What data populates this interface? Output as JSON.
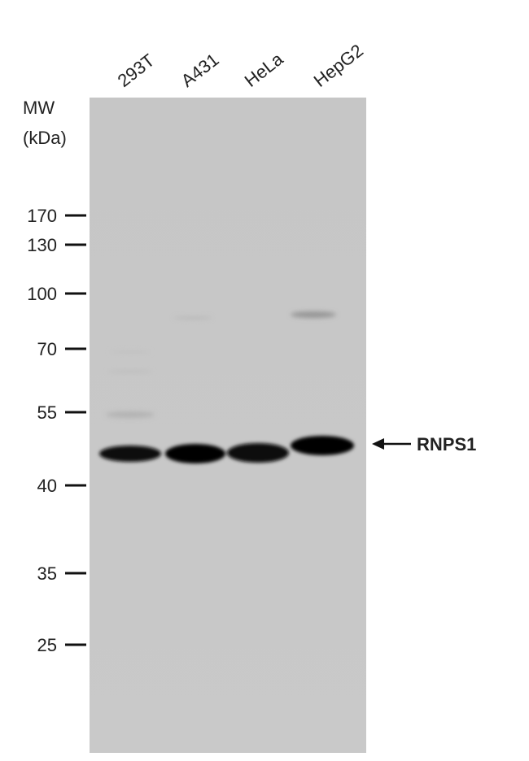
{
  "lanes": [
    "293T",
    "A431",
    "HeLa",
    "HepG2"
  ],
  "mw_label": "MW",
  "mw_unit": "(kDa)",
  "markers": [
    170,
    130,
    100,
    70,
    55,
    40,
    35,
    25
  ],
  "target": "RNPS1"
}
